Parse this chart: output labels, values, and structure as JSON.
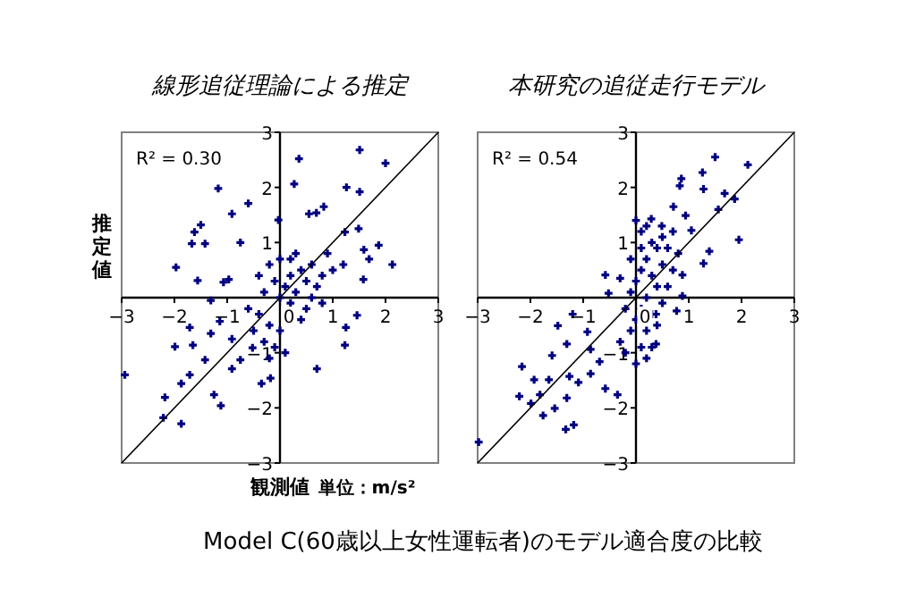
{
  "chart_data": [
    {
      "type": "scatter",
      "title": "線形追従理論による推定",
      "xlabel": "観測値",
      "ylabel": "推定値",
      "annotations": [
        "R² = 0.30",
        "単位：m/s²"
      ],
      "xlim": [
        -3,
        3
      ],
      "ylim": [
        -3,
        3
      ],
      "xticks": [
        -3,
        -2,
        -1,
        0,
        1,
        2,
        3
      ],
      "yticks": [
        -3,
        -2,
        -1,
        {
          "value": 0,
          "label": null
        },
        1,
        2,
        3
      ],
      "grid": false,
      "series": [
        {
          "type": "scatter",
          "marker": "cross",
          "color": "#000080",
          "x": [
            1.51,
            2.0,
            0.36,
            0.27,
            -1.17,
            -0.6,
            1.26,
            1.51,
            -0.03,
            -0.91,
            -1.5,
            -1.62,
            -1.67,
            -1.42,
            -0.75,
            -1.97,
            -1.56,
            -1.07,
            -0.97,
            0.55,
            0.69,
            0.83,
            1.23,
            1.49,
            1.87,
            1.59,
            2.13,
            1.58,
            1.69,
            1.46,
            1.23,
            1.25,
            0.7,
            -1.31,
            -1.71,
            -1.99,
            -1.65,
            -1.42,
            -1.31,
            -1.14,
            -0.91,
            -2.94,
            -1.87,
            -1.71,
            -2.18,
            -2.21,
            -1.87,
            -1.25,
            -1.12,
            -0.91,
            -0.75,
            -0.35,
            -0.18,
            -0.52,
            -0.4,
            -0.3,
            -0.2,
            -0.1,
            0,
            0.1,
            0.2,
            0.3,
            0.4,
            0.5,
            0.6,
            0.7,
            0.8,
            0.9,
            1.0,
            -0.5,
            -0.3,
            -0.1,
            0,
            0.2,
            -0.2,
            0,
            0.3,
            0.5,
            -0.6,
            0.4,
            0.2,
            -0.4,
            0.6,
            -0.2,
            0.1,
            1.2,
            0.8
          ],
          "values": [
            2.68,
            2.44,
            2.52,
            2.06,
            1.98,
            1.71,
            2.0,
            1.92,
            1.41,
            1.52,
            1.32,
            1.19,
            0.98,
            0.98,
            1.0,
            0.55,
            0.31,
            0.28,
            0.33,
            1.52,
            1.54,
            1.65,
            1.19,
            1.25,
            0.95,
            0.87,
            0.6,
            0.33,
            0.7,
            -0.32,
            -0.86,
            -0.54,
            -1.29,
            -0.05,
            -0.54,
            -0.89,
            -0.86,
            -1.13,
            -0.65,
            -0.43,
            -0.75,
            -1.4,
            -1.56,
            -1.4,
            -1.81,
            -2.18,
            -2.29,
            -1.76,
            -1.96,
            -1.29,
            -1.13,
            -1.56,
            -1.46,
            -0.91,
            -0.3,
            0.1,
            -0.5,
            0.3,
            0,
            0.2,
            0.4,
            0.1,
            0.5,
            0.3,
            0.6,
            0.2,
            0.4,
            0.8,
            0.5,
            -0.6,
            -0.8,
            -0.9,
            -0.6,
            -0.1,
            0.6,
            0.7,
            0.8,
            -0.2,
            -0.2,
            -0.4,
            0.7,
            0.4,
            0.0,
            -1.1,
            -1.0,
            0.6,
            -0.1
          ]
        },
        {
          "type": "line",
          "color": "#000000",
          "x": [
            -3,
            3
          ],
          "values": [
            -3,
            3
          ]
        }
      ]
    },
    {
      "type": "scatter",
      "title": "本研究の追従走行モデル",
      "annotations": [
        "R² = 0.54"
      ],
      "xlim": [
        -3,
        3
      ],
      "ylim": [
        -3,
        3
      ],
      "xticks": [
        -3,
        -2,
        -1,
        0,
        1,
        2,
        3
      ],
      "yticks": [
        -3,
        -2,
        -1,
        {
          "value": 0,
          "label": null
        },
        1,
        2,
        3
      ],
      "grid": false,
      "series": [
        {
          "type": "scatter",
          "marker": "cross",
          "color": "#000080",
          "x": [
            1.5,
            2.12,
            1.26,
            0.86,
            0.83,
            1.68,
            1.87,
            1.28,
            1.56,
            0.94,
            0.71,
            0.29,
            0.49,
            1.05,
            1.39,
            1.95,
            1.28,
            0.88,
            0.88,
            0.77,
            0.38,
            0.38,
            -0.58,
            -0.3,
            -0.52,
            -1.48,
            -1.2,
            -0.92,
            -1.31,
            -1.59,
            -0.86,
            -0.69,
            -2.16,
            -1.93,
            -1.65,
            -1.26,
            -1.09,
            -0.86,
            -0.35,
            -2.21,
            -1.99,
            -1.82,
            -1.54,
            -1.31,
            -1.76,
            -1.33,
            -1.18,
            -2.98,
            -0.58,
            -0.2,
            0,
            0.1,
            0.2,
            -0.1,
            0,
            0.1,
            0.2,
            -0.1,
            0,
            0.1,
            0.2,
            0.3,
            0.4,
            0.5,
            0.6,
            0.3,
            0.1,
            0,
            0.2,
            0.5,
            0.7,
            0.4,
            0.3,
            -0.2,
            0.1,
            0.7,
            0.6,
            0.2,
            -0.3,
            0.3,
            0.4,
            -0.1,
            0.8,
            0.5
          ],
          "values": [
            2.55,
            2.41,
            2.27,
            2.16,
            2.03,
            1.89,
            1.79,
            1.97,
            1.6,
            1.49,
            1.65,
            1.43,
            1.3,
            1.22,
            0.84,
            1.05,
            0.62,
            0.41,
            0.03,
            -0.24,
            -0.3,
            -0.84,
            0.41,
            0.35,
            0.08,
            -0.51,
            -0.3,
            -0.62,
            -0.84,
            -1.05,
            -0.94,
            -1.16,
            -1.25,
            -1.49,
            -1.49,
            -1.43,
            -1.54,
            -1.38,
            -1.76,
            -1.79,
            -1.92,
            -1.76,
            -2.01,
            -1.82,
            -2.14,
            -2.39,
            -2.31,
            -2.62,
            -1.65,
            -1.0,
            -1.2,
            -0.9,
            -1.1,
            -0.6,
            -0.4,
            -0.2,
            0,
            0.1,
            0.3,
            0.5,
            0.7,
            0.4,
            0.2,
            0.6,
            0.9,
            1.0,
            1.2,
            1.4,
            1.3,
            1.1,
            1.2,
            -0.5,
            -0.3,
            -0.2,
            0.9,
            0.5,
            0.2,
            -0.6,
            -0.8,
            -0.9,
            0.9,
            0.7,
            0.8,
            -0.1
          ]
        },
        {
          "type": "line",
          "color": "#000000",
          "x": [
            -3,
            3
          ],
          "values": [
            -3,
            3
          ]
        }
      ]
    },
    {
      "type": "other",
      "title": "Model C(60歳以上女性運転者)のモデル適合度の比較"
    }
  ]
}
